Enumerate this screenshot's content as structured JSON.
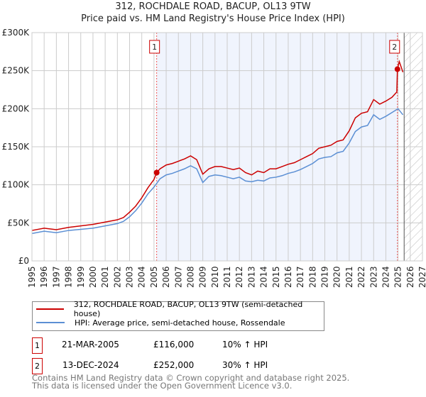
{
  "title": "312, ROCHDALE ROAD, BACUP, OL13 9TW",
  "subtitle": "Price paid vs. HM Land Registry's House Price Index (HPI)",
  "chart_data": {
    "type": "line",
    "ylim": [
      0,
      300000
    ],
    "xlim": [
      1995,
      2027
    ],
    "yticks": [
      {
        "v": 0,
        "label": "£0"
      },
      {
        "v": 50000,
        "label": "£50K"
      },
      {
        "v": 100000,
        "label": "£100K"
      },
      {
        "v": 150000,
        "label": "£150K"
      },
      {
        "v": 200000,
        "label": "£200K"
      },
      {
        "v": 250000,
        "label": "£250K"
      },
      {
        "v": 300000,
        "label": "£300K"
      }
    ],
    "xticks": [
      "1995",
      "1996",
      "1997",
      "1998",
      "1999",
      "2000",
      "2001",
      "2002",
      "2003",
      "2004",
      "2005",
      "2006",
      "2007",
      "2008",
      "2009",
      "2010",
      "2011",
      "2012",
      "2013",
      "2014",
      "2015",
      "2016",
      "2017",
      "2018",
      "2019",
      "2020",
      "2021",
      "2022",
      "2023",
      "2024",
      "2025",
      "2026",
      "2027"
    ],
    "grid": true,
    "shaded_range": [
      2005.22,
      2024.95
    ],
    "forecast_hatch_from": 2025.5,
    "series": [
      {
        "name": "312, ROCHDALE ROAD, BACUP, OL13 9TW (semi-detached house)",
        "color": "#cc0000",
        "x": [
          1995,
          1996,
          1997,
          1998,
          1999,
          2000,
          2001,
          2002,
          2002.5,
          2003,
          2003.5,
          2004,
          2004.5,
          2005,
          2005.22,
          2005.5,
          2006,
          2006.5,
          2007,
          2007.5,
          2008,
          2008.5,
          2009,
          2009.5,
          2010,
          2010.5,
          2011,
          2011.5,
          2012,
          2012.5,
          2013,
          2013.5,
          2014,
          2014.5,
          2015,
          2015.5,
          2016,
          2016.5,
          2017,
          2017.5,
          2018,
          2018.5,
          2019,
          2019.5,
          2020,
          2020.5,
          2021,
          2021.5,
          2022,
          2022.5,
          2023,
          2023.5,
          2024,
          2024.5,
          2024.9,
          2024.95,
          2025.1,
          2025.4
        ],
        "y": [
          40000,
          43000,
          41000,
          44000,
          46000,
          48000,
          51000,
          54000,
          57000,
          64000,
          72000,
          83000,
          96000,
          107000,
          116000,
          121000,
          126000,
          128000,
          131000,
          134000,
          138000,
          133000,
          114000,
          121000,
          124000,
          124000,
          122000,
          120000,
          122000,
          116000,
          113000,
          118000,
          116000,
          121000,
          121000,
          124000,
          127000,
          129000,
          133000,
          137000,
          141000,
          148000,
          150000,
          152000,
          157000,
          159000,
          171000,
          188000,
          194000,
          196000,
          212000,
          206000,
          210000,
          215000,
          222000,
          252000,
          262000,
          248000
        ]
      },
      {
        "name": "HPI: Average price, semi-detached house, Rossendale",
        "color": "#5b8fd4",
        "x": [
          1995,
          1996,
          1997,
          1998,
          1999,
          2000,
          2001,
          2002,
          2002.5,
          2003,
          2003.5,
          2004,
          2004.5,
          2005,
          2005.5,
          2006,
          2006.5,
          2007,
          2007.5,
          2008,
          2008.5,
          2009,
          2009.5,
          2010,
          2010.5,
          2011,
          2011.5,
          2012,
          2012.5,
          2013,
          2013.5,
          2014,
          2014.5,
          2015,
          2015.5,
          2016,
          2016.5,
          2017,
          2017.5,
          2018,
          2018.5,
          2019,
          2019.5,
          2020,
          2020.5,
          2021,
          2021.5,
          2022,
          2022.5,
          2023,
          2023.5,
          2024,
          2024.5,
          2025,
          2025.4
        ],
        "y": [
          36000,
          39000,
          37000,
          40000,
          41500,
          43000,
          46000,
          49000,
          52000,
          58000,
          66000,
          76000,
          88000,
          97000,
          108000,
          113000,
          115000,
          118000,
          121000,
          125000,
          121000,
          103000,
          111000,
          113000,
          112000,
          110000,
          108000,
          110000,
          105000,
          104000,
          106000,
          105000,
          109000,
          110000,
          112000,
          115000,
          117000,
          120000,
          124000,
          128000,
          134000,
          136000,
          137000,
          142000,
          144000,
          155000,
          170000,
          176000,
          178000,
          192000,
          186000,
          190000,
          195000,
          200000,
          192000
        ]
      }
    ],
    "sales": [
      {
        "id": "1",
        "x": 2005.22,
        "y": 116000
      },
      {
        "id": "2",
        "x": 2024.95,
        "y": 252000
      }
    ]
  },
  "legend": {
    "property": "312, ROCHDALE ROAD, BACUP, OL13 9TW (semi-detached house)",
    "hpi": "HPI: Average price, semi-detached house, Rossendale"
  },
  "transactions": [
    {
      "id": "1",
      "date": "21-MAR-2005",
      "price": "£116,000",
      "hpi": "10% ↑ HPI"
    },
    {
      "id": "2",
      "date": "13-DEC-2024",
      "price": "£252,000",
      "hpi": "30% ↑ HPI"
    }
  ],
  "footer": {
    "line1": "Contains HM Land Registry data © Crown copyright and database right 2025.",
    "line2": "This data is licensed under the Open Government Licence v3.0."
  }
}
